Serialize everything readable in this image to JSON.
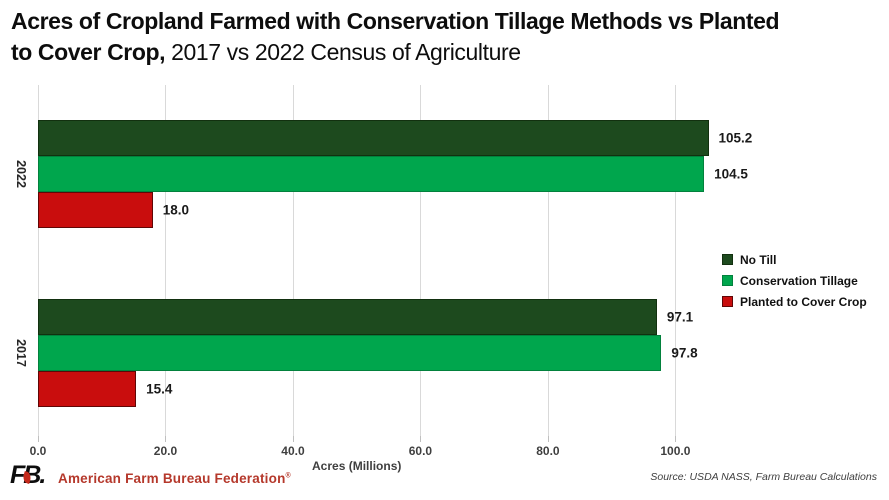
{
  "title": {
    "line1_bold": "Acres of Cropland Farmed with Conservation Tillage Methods vs Planted",
    "line2_bold": "to Cover Crop,",
    "line2_regular": " 2017 vs 2022 Census of Agriculture"
  },
  "chart_data": {
    "type": "bar",
    "orientation": "horizontal",
    "categories": [
      "2022",
      "2017"
    ],
    "series": [
      {
        "name": "No Till",
        "color": "#1d4a1e",
        "border": "#12300f",
        "values": [
          105.2,
          97.1
        ]
      },
      {
        "name": "Conservation Tillage",
        "color": "#00a64d",
        "border": "#02813d",
        "values": [
          104.5,
          97.8
        ]
      },
      {
        "name": "Planted to Cover Crop",
        "color": "#c90d0d",
        "border": "#600606",
        "values": [
          18.0,
          15.4
        ]
      }
    ],
    "value_label_decimals": 1,
    "xlabel": "Acres (Millions)",
    "x_ticks": [
      0,
      20,
      40,
      60,
      80,
      100
    ],
    "xlim": [
      0,
      115
    ],
    "grid": true,
    "legend_position": "right-middle",
    "colors": {
      "grid": "#d9d9d9",
      "tick": "#bfbfbf",
      "axis_text": "#3f3f3f"
    }
  },
  "footer": {
    "logo": "FB.",
    "org": "American Farm Bureau Federation",
    "reg": "®",
    "source": "Source: USDA NASS, Farm Bureau Calculations"
  }
}
